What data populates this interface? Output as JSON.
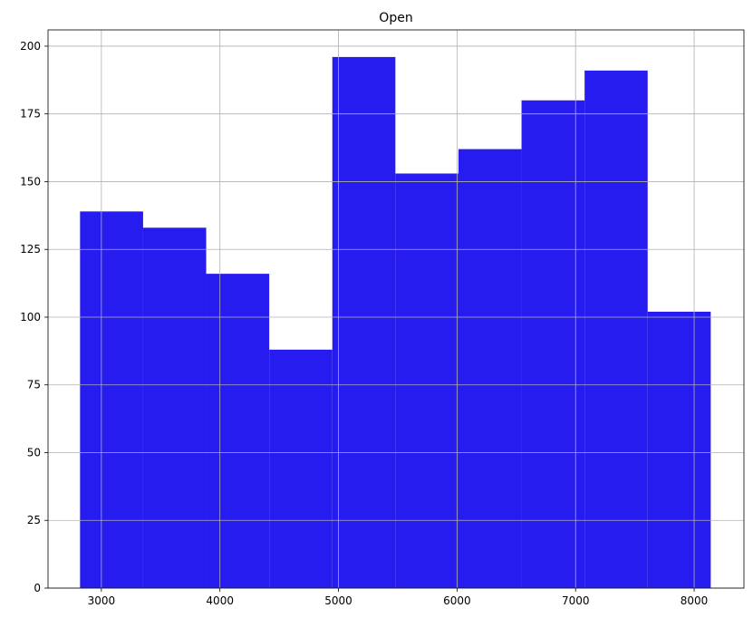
{
  "chart_data": {
    "type": "bar",
    "title": "Open",
    "xlabel": "",
    "ylabel": "",
    "bar_color": "#261cf0",
    "grid": true,
    "xlim": [
      2550,
      8420
    ],
    "ylim": [
      0,
      206
    ],
    "xticks": [
      3000,
      4000,
      5000,
      6000,
      7000,
      8000
    ],
    "yticks": [
      0,
      25,
      50,
      75,
      100,
      125,
      150,
      175,
      200
    ],
    "bin_edges": [
      2820,
      3352,
      3884,
      4416,
      4948,
      5480,
      6012,
      6544,
      7076,
      7608,
      8140
    ],
    "values": [
      139,
      133,
      116,
      88,
      196,
      153,
      162,
      180,
      191,
      102
    ]
  }
}
